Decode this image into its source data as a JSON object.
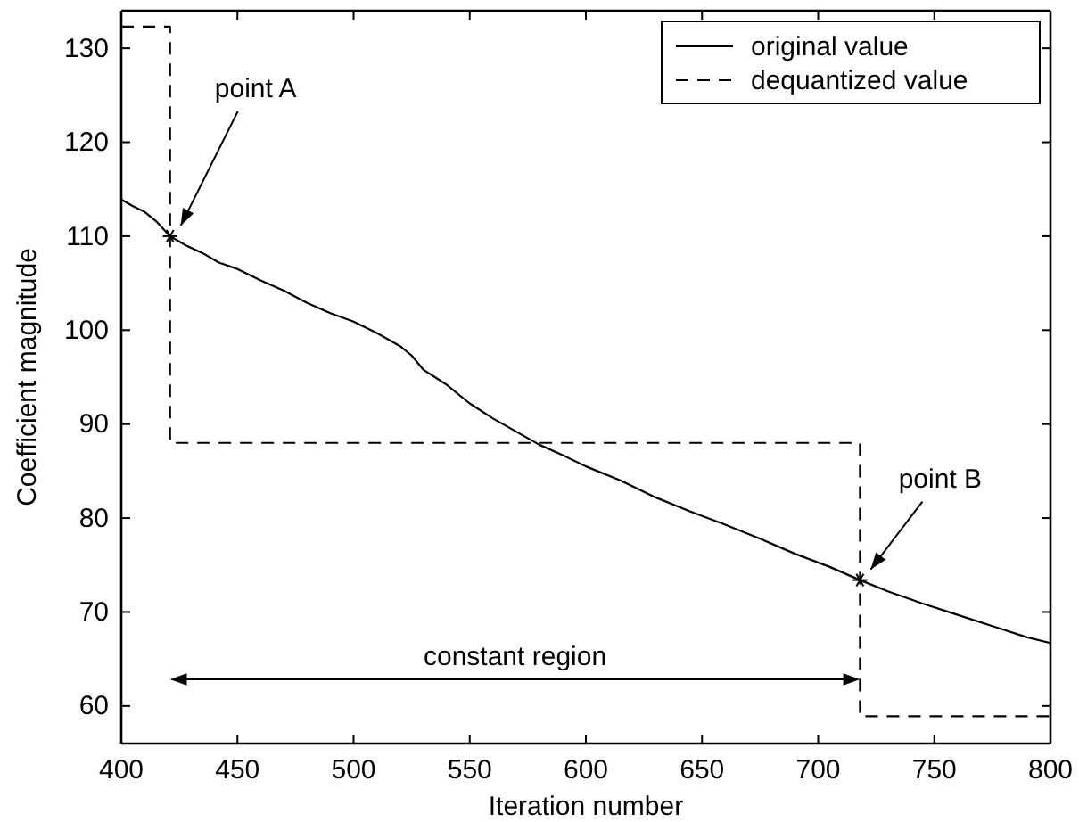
{
  "chart_data": {
    "type": "line",
    "xlabel": "Iteration number",
    "ylabel": "Coefficient magnitude",
    "xlim": [
      400,
      800
    ],
    "xticks": [
      400,
      450,
      500,
      550,
      600,
      650,
      700,
      750,
      800
    ],
    "ylim": [
      56,
      134
    ],
    "yticks": [
      60,
      70,
      80,
      90,
      100,
      110,
      120,
      130
    ],
    "grid": false,
    "legend": "top right",
    "series": [
      {
        "name": "original value",
        "color": "#000000",
        "line_style": "solid",
        "x": [
          400,
          405,
          410,
          415,
          421,
          428,
          435,
          442,
          450,
          460,
          470,
          480,
          490,
          500,
          510,
          520,
          525,
          530,
          535,
          540,
          550,
          560,
          570,
          580,
          590,
          600,
          615,
          630,
          645,
          660,
          675,
          690,
          705,
          718,
          730,
          745,
          760,
          775,
          790,
          800
        ],
        "values": [
          113.9,
          113.2,
          112.6,
          111.6,
          110,
          109,
          108.2,
          107.2,
          106.5,
          105.3,
          104.2,
          102.9,
          101.8,
          100.9,
          99.7,
          98.3,
          97.3,
          95.8,
          95,
          94.2,
          92.2,
          90.6,
          89.2,
          87.8,
          86.7,
          85.5,
          84,
          82.2,
          80.7,
          79.3,
          77.8,
          76.2,
          74.8,
          73.4,
          72.2,
          70.9,
          69.7,
          68.5,
          67.3,
          66.7
        ]
      },
      {
        "name": "dequantized value",
        "color": "#000000",
        "line_style": "dashed",
        "x": [
          400,
          421,
          421,
          718,
          718,
          800
        ],
        "values": [
          132.3,
          132.3,
          88,
          88,
          58.9,
          58.9
        ]
      }
    ],
    "annotations": [
      {
        "text": "point A",
        "x": 421,
        "y": 110
      },
      {
        "text": "point B",
        "x": 718,
        "y": 73.4
      },
      "constant region"
    ]
  }
}
